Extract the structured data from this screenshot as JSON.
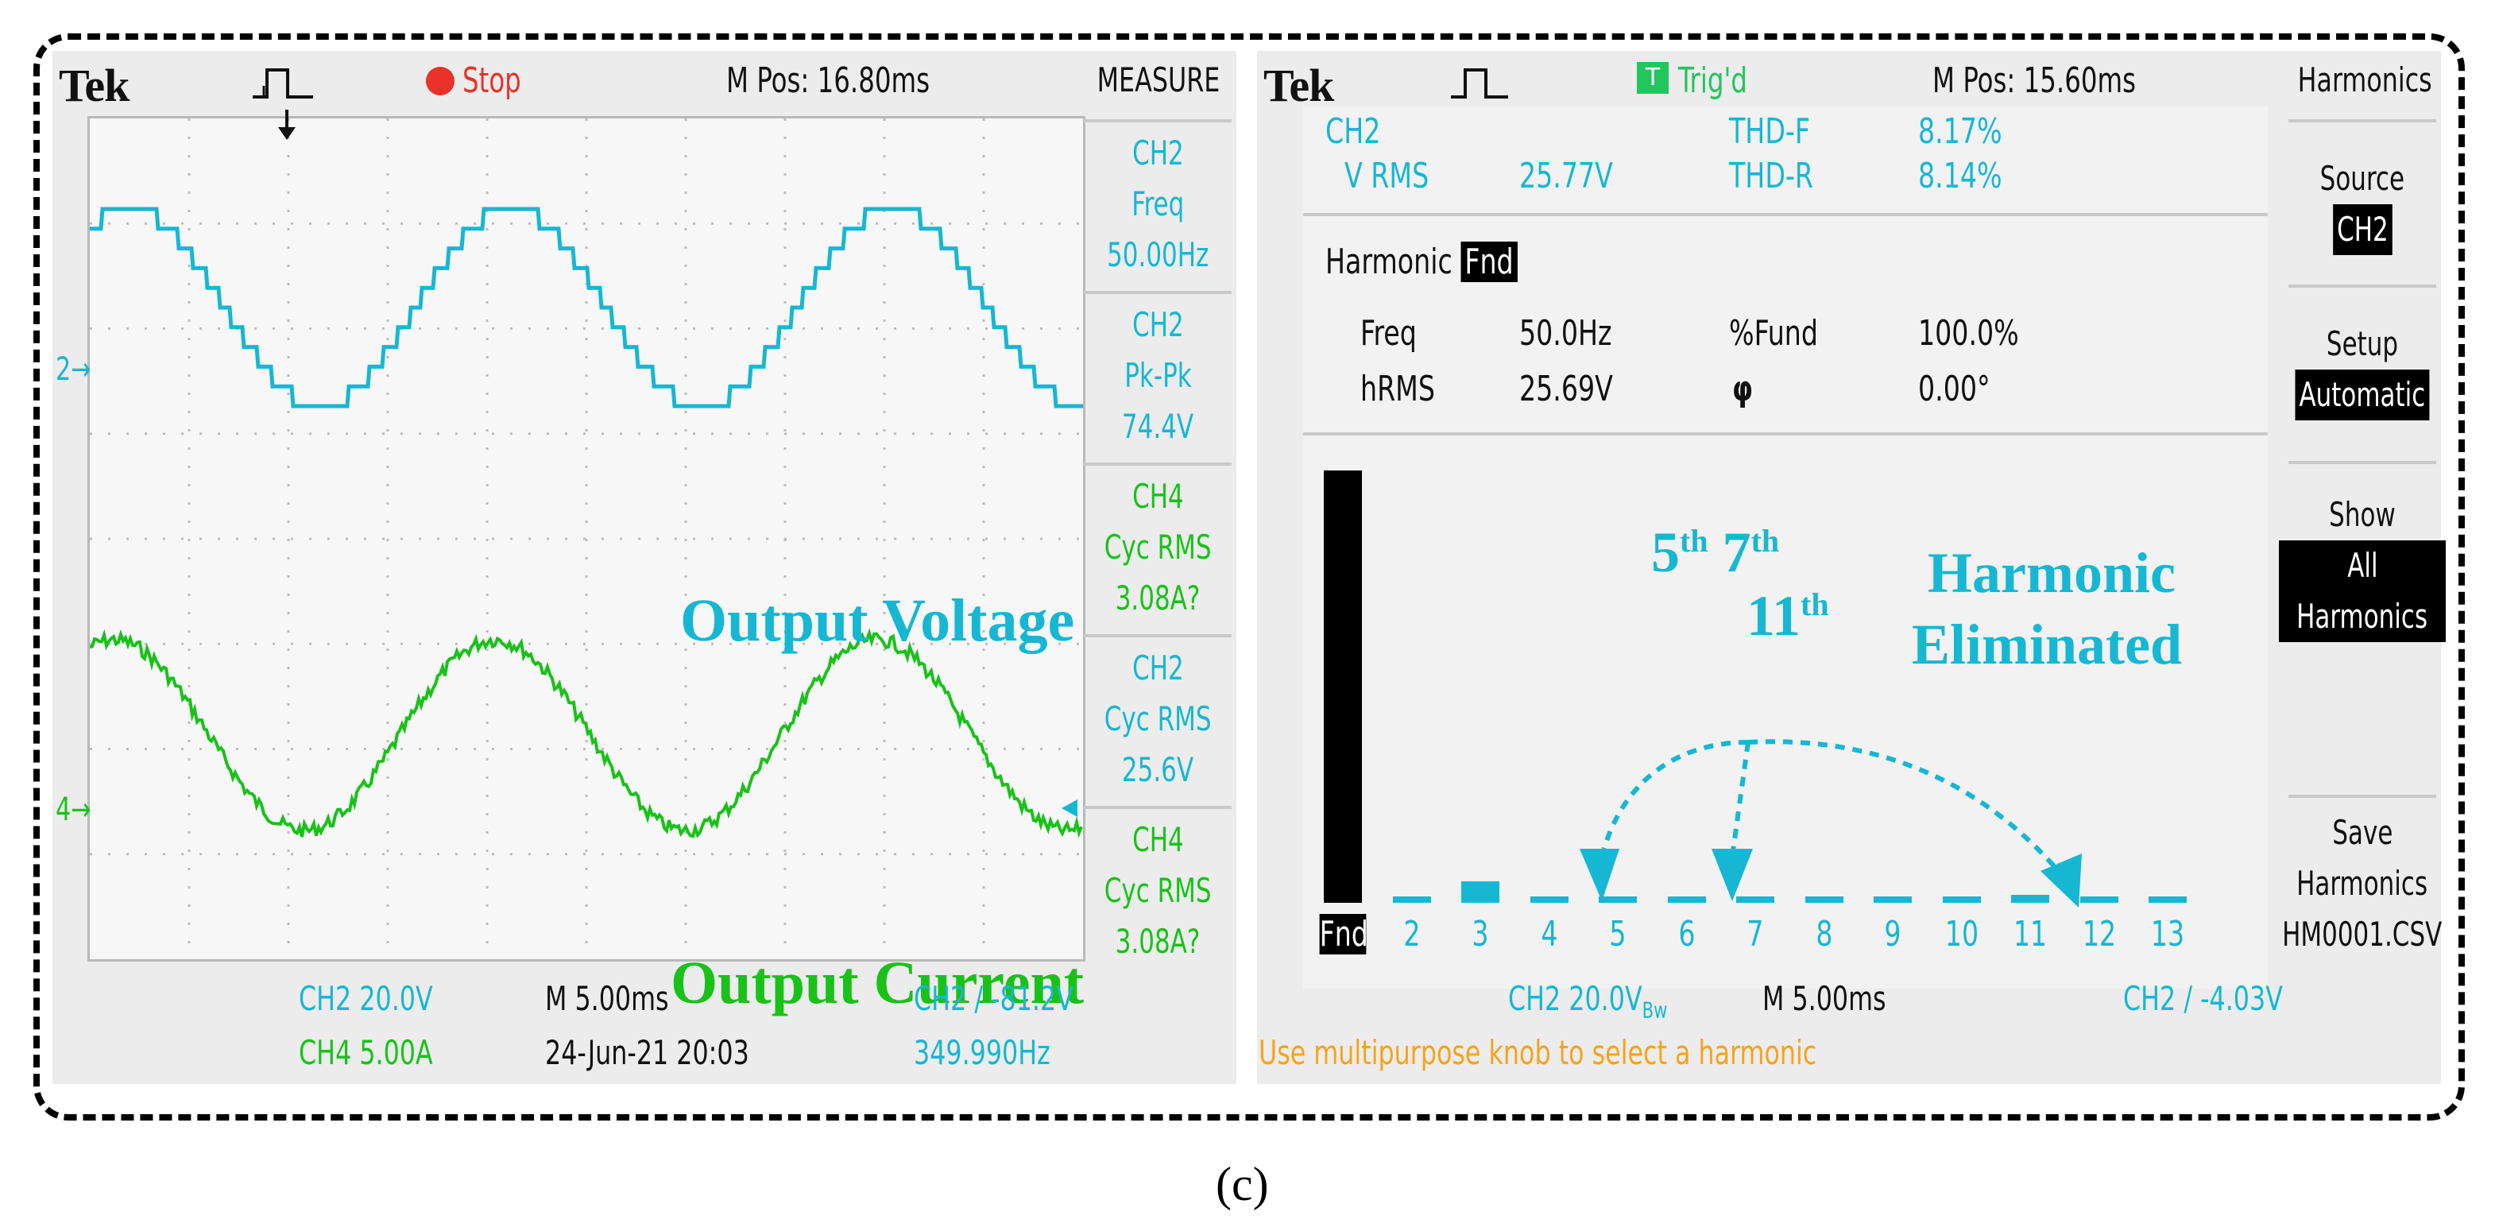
{
  "caption": "(c)",
  "colors": {
    "ch2": "#16b7d2",
    "ch4": "#19c219",
    "stop": "#e8322a",
    "trig": "#22c55e",
    "hint": "#f6a31c"
  },
  "left_scope": {
    "brand": "Tek",
    "run_state": "Stop",
    "mpos": "M Pos: 16.80ms",
    "menu_title": "MEASURE",
    "measurements": [
      {
        "ch": "CH2",
        "name": "Freq",
        "value": "50.00Hz",
        "color": "cyan"
      },
      {
        "ch": "CH2",
        "name": "Pk-Pk",
        "value": "74.4V",
        "color": "cyan"
      },
      {
        "ch": "CH4",
        "name": "Cyc RMS",
        "value": "3.08A?",
        "color": "green"
      },
      {
        "ch": "CH2",
        "name": "Cyc RMS",
        "value": "25.6V",
        "color": "cyan"
      },
      {
        "ch": "CH4",
        "name": "Cyc RMS",
        "value": "3.08A?",
        "color": "green"
      }
    ],
    "ch2_marker": "2",
    "ch4_marker": "4",
    "label_voltage": "Output Voltage",
    "label_current": "Output Current",
    "status": {
      "ch2_scale": "CH2  20.0V",
      "ch4_scale": "CH4  5.00A",
      "timebase": "M 5.00ms",
      "datetime": "24-Jun-21 20:03",
      "trigger": "CH2 ∕ -81.2V",
      "trigger_freq": "349.990Hz"
    }
  },
  "right_scope": {
    "brand": "Tek",
    "trig_icon": "T",
    "trig_state": "Trig'd",
    "mpos": "M Pos: 15.60ms",
    "menu_title": "Harmonics",
    "summary": {
      "channel": "CH2",
      "vrms_label": "V RMS",
      "vrms_value": "25.77V",
      "thdf_label": "THD-F",
      "thdf_value": "8.17%",
      "thdr_label": "THD-R",
      "thdr_value": "8.14%"
    },
    "harmonic_label": "Harmonic",
    "harmonic_sel": "Fnd",
    "details": {
      "freq_label": "Freq",
      "freq_value": "50.0Hz",
      "fund_label": "%Fund",
      "fund_value": "100.0%",
      "hrms_label": "hRMS",
      "hrms_value": "25.69V",
      "phi_label": "φ",
      "phi_value": "0.00°"
    },
    "annotation": {
      "n5": "5",
      "n7": "7",
      "n11": "11",
      "sup": "th",
      "line1": "Harmonic",
      "line2": "Eliminated"
    },
    "chart_data": {
      "type": "bar",
      "title": "Harmonics",
      "categories": [
        "Fnd",
        "2",
        "3",
        "4",
        "5",
        "6",
        "7",
        "8",
        "9",
        "10",
        "11",
        "12",
        "13"
      ],
      "values": [
        100.0,
        0.3,
        5.0,
        0.3,
        1.4,
        0.3,
        0.5,
        0.3,
        0.3,
        0.3,
        1.9,
        0.3,
        0.3
      ],
      "ylabel": "%Fund",
      "ylim": [
        0,
        100
      ]
    },
    "menu": {
      "source_label": "Source",
      "source_value": "CH2",
      "setup_label": "Setup",
      "setup_value": "Automatic",
      "show_label": "Show",
      "show_value_1": "All",
      "show_value_2": "Harmonics",
      "save_label_1": "Save",
      "save_label_2": "Harmonics",
      "save_file": "HM0001.CSV"
    },
    "status": {
      "ch2_scale": "CH2  20.0V",
      "bw": "Bw",
      "timebase": "M 5.00ms",
      "trigger": "CH2 ∕ -4.03V",
      "hint": "Use multipurpose knob to select a harmonic"
    }
  }
}
